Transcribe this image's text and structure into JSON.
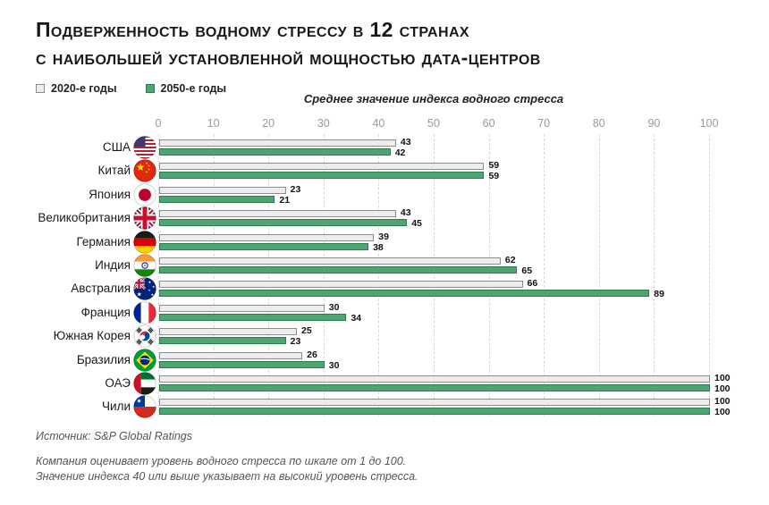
{
  "title": {
    "line1": "Подверженность водному стрессу в 12 странах",
    "line2": "с наибольшей установленной мощностью дата-центров"
  },
  "legend": {
    "items": [
      {
        "label": "2020-е годы",
        "color": "#ededed"
      },
      {
        "label": "2050-е годы",
        "color": "#4ea56f"
      }
    ]
  },
  "chart_data": {
    "type": "bar",
    "orientation": "horizontal",
    "title": "Подверженность водному стрессу в 12 странах с наибольшей установленной мощностью дата-центров",
    "xlabel": "Среднее значение индекса водного стресса",
    "xlim": [
      0,
      100
    ],
    "x_ticks": [
      0,
      10,
      20,
      30,
      40,
      50,
      60,
      70,
      80,
      90,
      100
    ],
    "grid": "vertical-dashed",
    "legend_position": "top-left",
    "categories": [
      "США",
      "Китай",
      "Япония",
      "Великобритания",
      "Германия",
      "Индия",
      "Австралия",
      "Франция",
      "Южная Корея",
      "Бразилия",
      "ОАЭ",
      "Чили"
    ],
    "flags": [
      "us",
      "cn",
      "jp",
      "gb",
      "de",
      "in",
      "au",
      "fr",
      "kr",
      "br",
      "ae",
      "cl"
    ],
    "series": [
      {
        "name": "2020-е годы",
        "color": "#ededed",
        "values": [
          43,
          59,
          23,
          43,
          39,
          62,
          66,
          30,
          25,
          26,
          100,
          100
        ]
      },
      {
        "name": "2050-е годы",
        "color": "#4ea56f",
        "values": [
          42,
          59,
          21,
          45,
          38,
          65,
          89,
          34,
          23,
          30,
          100,
          100
        ]
      }
    ]
  },
  "footer": {
    "source": "Источник: S&P Global Ratings",
    "note_line1": "Компания оценивает уровень водного стресса по шкале от 1 до 100.",
    "note_line2": "Значение индекса 40 или выше указывает на высокий уровень стресса."
  },
  "colors": {
    "bar_2020_fill": "#ededed",
    "bar_2020_border": "#8d8d8d",
    "bar_2050_fill": "#4ea56f",
    "bar_2050_border": "#2f7b50",
    "gridline": "#d8d8d8",
    "tick_label": "#9b9b9b",
    "title_text": "#191919",
    "footnote_text": "#555555"
  }
}
